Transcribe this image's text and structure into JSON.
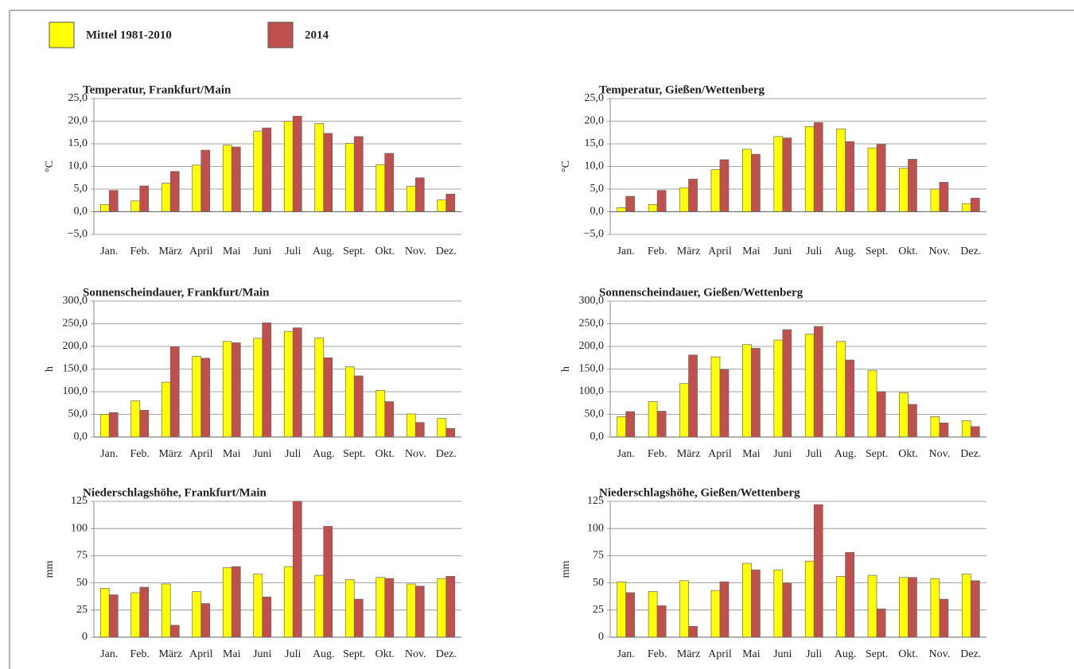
{
  "chart_data": [
    {
      "type": "bar",
      "title": "Temperatur, Frankfurt/Main",
      "ylabel": "°C",
      "categories": [
        "Jan.",
        "Feb.",
        "März",
        "April",
        "Mai",
        "Juni",
        "Juli",
        "Aug.",
        "Sept.",
        "Okt.",
        "Nov.",
        "Dez."
      ],
      "series": [
        {
          "name": "Mittel 1981-2010",
          "color": "#ffff00",
          "values": [
            1.6,
            2.4,
            6.3,
            10.3,
            14.7,
            17.8,
            20.0,
            19.5,
            15.1,
            10.4,
            5.6,
            2.6
          ]
        },
        {
          "name": "2014",
          "color": "#c0504d",
          "values": [
            4.7,
            5.7,
            8.9,
            13.6,
            14.3,
            18.5,
            21.1,
            17.3,
            16.6,
            12.9,
            7.5,
            3.9
          ]
        }
      ],
      "ylim": [
        -5,
        25
      ],
      "yticks": [
        {
          "value": -5,
          "label": "−5,0"
        },
        {
          "value": 0,
          "label": "0,0"
        },
        {
          "value": 5,
          "label": "5,0"
        },
        {
          "value": 10,
          "label": "10,0"
        },
        {
          "value": 15,
          "label": "15,0"
        },
        {
          "value": 20,
          "label": "20,0"
        },
        {
          "value": 25,
          "label": "25,0"
        }
      ],
      "grid": true
    },
    {
      "type": "bar",
      "title": "Temperatur, Gießen/Wettenberg",
      "ylabel": "°C",
      "categories": [
        "Jan.",
        "Feb.",
        "März",
        "April",
        "Mai",
        "Juni",
        "Juli",
        "Aug.",
        "Sept.",
        "Okt.",
        "Nov.",
        "Dez."
      ],
      "series": [
        {
          "name": "Mittel 1981-2010",
          "color": "#ffff00",
          "values": [
            0.9,
            1.6,
            5.3,
            9.3,
            13.8,
            16.6,
            18.8,
            18.3,
            14.1,
            9.6,
            5.0,
            1.8
          ]
        },
        {
          "name": "2014",
          "color": "#c0504d",
          "values": [
            3.4,
            4.7,
            7.2,
            11.5,
            12.7,
            16.3,
            19.7,
            15.5,
            14.9,
            11.6,
            6.5,
            3.0
          ]
        }
      ],
      "ylim": [
        -5,
        25
      ],
      "yticks": [
        {
          "value": -5,
          "label": "−5,0"
        },
        {
          "value": 0,
          "label": "0,0"
        },
        {
          "value": 5,
          "label": "5,0"
        },
        {
          "value": 10,
          "label": "10,0"
        },
        {
          "value": 15,
          "label": "15,0"
        },
        {
          "value": 20,
          "label": "20,0"
        },
        {
          "value": 25,
          "label": "25,0"
        }
      ],
      "grid": true
    },
    {
      "type": "bar",
      "title": "Sonnenscheindauer, Frankfurt/Main",
      "ylabel": "h",
      "categories": [
        "Jan.",
        "Feb.",
        "März",
        "April",
        "Mai",
        "Juni",
        "Juli",
        "Aug.",
        "Sept.",
        "Okt.",
        "Nov.",
        "Dez."
      ],
      "series": [
        {
          "name": "Mittel 1981-2010",
          "color": "#ffff00",
          "values": [
            50,
            80,
            121,
            178,
            211,
            218,
            233,
            219,
            155,
            103,
            51,
            41
          ]
        },
        {
          "name": "2014",
          "color": "#c0504d",
          "values": [
            54,
            59,
            199,
            174,
            208,
            252,
            241,
            175,
            135,
            78,
            32,
            19
          ]
        }
      ],
      "ylim": [
        0,
        300
      ],
      "yticks": [
        {
          "value": 0,
          "label": "0,0"
        },
        {
          "value": 50,
          "label": "50,0"
        },
        {
          "value": 100,
          "label": "100,0"
        },
        {
          "value": 150,
          "label": "150,0"
        },
        {
          "value": 200,
          "label": "200,0"
        },
        {
          "value": 250,
          "label": "250,0"
        },
        {
          "value": 300,
          "label": "300,0"
        }
      ],
      "grid": true
    },
    {
      "type": "bar",
      "title": "Sonnenscheindauer, Gießen/Wettenberg",
      "ylabel": "h",
      "categories": [
        "Jan.",
        "Feb.",
        "März",
        "April",
        "Mai",
        "Juni",
        "Juli",
        "Aug.",
        "Sept.",
        "Okt.",
        "Nov.",
        "Dez."
      ],
      "series": [
        {
          "name": "Mittel 1981-2010",
          "color": "#ffff00",
          "values": [
            45,
            78,
            118,
            177,
            204,
            214,
            227,
            211,
            147,
            98,
            45,
            36
          ]
        },
        {
          "name": "2014",
          "color": "#c0504d",
          "values": [
            56,
            57,
            181,
            149,
            196,
            237,
            244,
            170,
            100,
            72,
            31,
            23
          ]
        }
      ],
      "ylim": [
        0,
        300
      ],
      "yticks": [
        {
          "value": 0,
          "label": "0,0"
        },
        {
          "value": 50,
          "label": "50,0"
        },
        {
          "value": 100,
          "label": "100,0"
        },
        {
          "value": 150,
          "label": "150,0"
        },
        {
          "value": 200,
          "label": "200,0"
        },
        {
          "value": 250,
          "label": "250,0"
        },
        {
          "value": 300,
          "label": "300,0"
        }
      ],
      "grid": true
    },
    {
      "type": "bar",
      "title": "Niederschlagshöhe, Frankfurt/Main",
      "ylabel": "mm",
      "categories": [
        "Jan.",
        "Feb.",
        "März",
        "April",
        "Mai",
        "Juni",
        "Juli",
        "Aug.",
        "Sept.",
        "Okt.",
        "Nov.",
        "Dez."
      ],
      "series": [
        {
          "name": "Mittel 1981-2010",
          "color": "#ffff00",
          "values": [
            45,
            41,
            49,
            42,
            64,
            58,
            65,
            57,
            53,
            55,
            49,
            54
          ]
        },
        {
          "name": "2014",
          "color": "#c0504d",
          "values": [
            39,
            46,
            11,
            31,
            65,
            37,
            125,
            102,
            35,
            54,
            47,
            56
          ]
        }
      ],
      "ylim": [
        0,
        125
      ],
      "yticks": [
        0,
        25,
        50,
        75,
        100,
        125
      ],
      "grid": true
    },
    {
      "type": "bar",
      "title": "Niederschlagshöhe, Gießen/Wettenberg",
      "ylabel": "mm",
      "categories": [
        "Jan.",
        "Feb.",
        "März",
        "April",
        "Mai",
        "Juni",
        "Juli",
        "Aug.",
        "Sept.",
        "Okt.",
        "Nov.",
        "Dez."
      ],
      "series": [
        {
          "name": "Mittel 1981-2010",
          "color": "#ffff00",
          "values": [
            51,
            42,
            52,
            43,
            68,
            62,
            70,
            56,
            57,
            55,
            54,
            58
          ]
        },
        {
          "name": "2014",
          "color": "#c0504d",
          "values": [
            41,
            29,
            10,
            51,
            62,
            50,
            122,
            78,
            26,
            55,
            35,
            52
          ]
        }
      ],
      "ylim": [
        0,
        125
      ],
      "yticks": [
        0,
        25,
        50,
        75,
        100,
        125
      ],
      "grid": true
    }
  ]
}
